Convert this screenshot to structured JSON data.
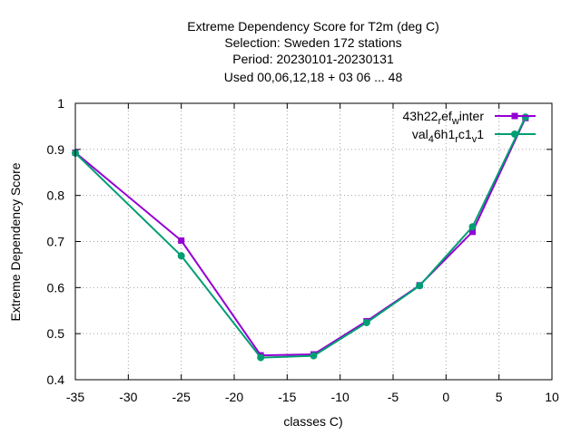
{
  "chart_data": {
    "type": "line",
    "title_lines": [
      "Extreme Dependency Score  for T2m (deg C)",
      "Selection: Sweden    172 stations",
      "Period: 20230101-20230131",
      "Used  00,06,12,18  + 03 06 ... 48"
    ],
    "xlabel": "classes C)",
    "ylabel": "Extreme Dependency Score",
    "xlim": [
      -35,
      10
    ],
    "ylim": [
      0.4,
      1.0
    ],
    "xticks": [
      -35,
      -30,
      -25,
      -20,
      -15,
      -10,
      -5,
      0,
      5,
      10
    ],
    "yticks": [
      0.4,
      0.5,
      0.6,
      0.7,
      0.8,
      0.9,
      1.0
    ],
    "xtick_labels": [
      "-35",
      "-30",
      "-25",
      "-20",
      "-15",
      "-10",
      "-5",
      "0",
      "5",
      "10"
    ],
    "ytick_labels": [
      "0.4",
      "0.5",
      "0.6",
      "0.7",
      "0.8",
      "0.9",
      "1"
    ],
    "grid": true,
    "legend_position": "top-right",
    "series": [
      {
        "name": "43h22_ref_winter",
        "name_parts": [
          [
            "43h22",
            ""
          ],
          [
            "r",
            "sub"
          ],
          [
            "ef",
            ""
          ],
          [
            "w",
            "sub"
          ],
          [
            "inter",
            ""
          ]
        ],
        "color": "#9400d3",
        "marker": "square",
        "x": [
          -35,
          -25,
          -17.5,
          -12.5,
          -7.5,
          -2.5,
          2.5,
          7.5
        ],
        "y": [
          0.893,
          0.702,
          0.453,
          0.455,
          0.527,
          0.605,
          0.721,
          0.968
        ]
      },
      {
        "name": "val_46h1_rc1_v1",
        "name_parts": [
          [
            "val",
            ""
          ],
          [
            "4",
            "sub"
          ],
          [
            "6h1",
            ""
          ],
          [
            "r",
            "sub"
          ],
          [
            "c1",
            ""
          ],
          [
            "v",
            "sub"
          ],
          [
            "1",
            ""
          ]
        ],
        "color": "#009e73",
        "marker": "circle",
        "x": [
          -35,
          -25,
          -17.5,
          -12.5,
          -7.5,
          -2.5,
          2.5,
          7.5
        ],
        "y": [
          0.892,
          0.669,
          0.448,
          0.452,
          0.524,
          0.604,
          0.732,
          0.97
        ]
      }
    ]
  }
}
